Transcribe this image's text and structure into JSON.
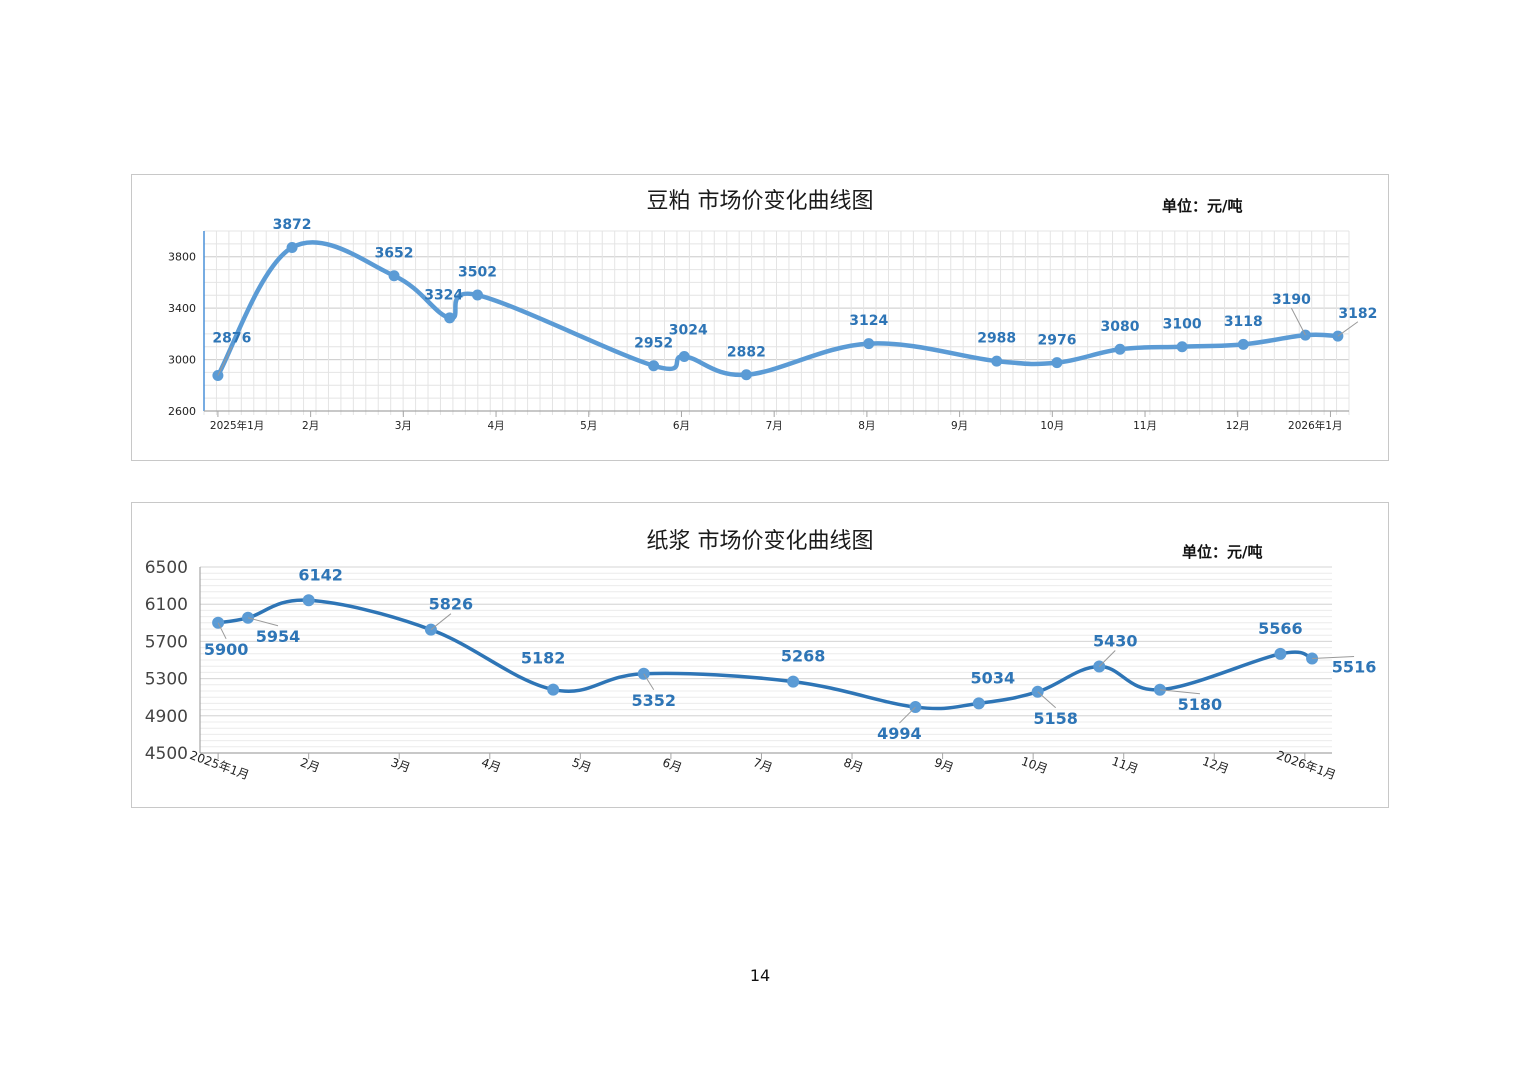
{
  "page_number": "14",
  "chart_data": [
    {
      "type": "line",
      "title": "豆粕 市场价变化曲线图",
      "unit_label": "单位：元/吨",
      "ylim": [
        2600,
        4000
      ],
      "yticks": [
        "2600",
        "3000",
        "3400",
        "3800"
      ],
      "grid": true,
      "x_months": [
        "2025年1月",
        "2月",
        "3月",
        "4月",
        "5月",
        "6月",
        "7月",
        "8月",
        "9月",
        "10月",
        "11月",
        "12月",
        "2026年1月"
      ],
      "series": [
        {
          "color": "#5b9bd5",
          "points": [
            {
              "x": 0.0,
              "y": 2876,
              "label": "2876"
            },
            {
              "x": 0.8,
              "y": 3872,
              "label": "3872"
            },
            {
              "x": 1.9,
              "y": 3652,
              "label": "3652"
            },
            {
              "x": 2.5,
              "y": 3324,
              "label": "3324"
            },
            {
              "x": 2.8,
              "y": 3502,
              "label": "3502"
            },
            {
              "x": 4.7,
              "y": 2952,
              "label": "2952"
            },
            {
              "x": 5.03,
              "y": 3024,
              "label": "3024"
            },
            {
              "x": 5.7,
              "y": 2882,
              "label": "2882"
            },
            {
              "x": 7.02,
              "y": 3124,
              "label": "3124"
            },
            {
              "x": 8.4,
              "y": 2988,
              "label": "2988"
            },
            {
              "x": 9.05,
              "y": 2976,
              "label": "2976"
            },
            {
              "x": 9.73,
              "y": 3080,
              "label": "3080"
            },
            {
              "x": 10.4,
              "y": 3100,
              "label": "3100"
            },
            {
              "x": 11.06,
              "y": 3118,
              "label": "3118"
            },
            {
              "x": 11.73,
              "y": 3190,
              "label": "3190"
            },
            {
              "x": 12.08,
              "y": 3182,
              "label": "3182"
            }
          ]
        }
      ]
    },
    {
      "type": "line",
      "title": "纸浆 市场价变化曲线图",
      "unit_label": "单位：元/吨",
      "ylim": [
        4500,
        6500
      ],
      "yticks": [
        "4500",
        "4900",
        "5300",
        "5700",
        "6100",
        "6500"
      ],
      "grid": true,
      "x_months": [
        "2025年1月",
        "2月",
        "3月",
        "4月",
        "5月",
        "6月",
        "7月",
        "8月",
        "9月",
        "10月",
        "11月",
        "12月",
        "2026年1月"
      ],
      "series": [
        {
          "color": "#2e75b6",
          "points": [
            {
              "x": 0.0,
              "y": 5900,
              "label": "5900"
            },
            {
              "x": 0.33,
              "y": 5954,
              "label": "5954"
            },
            {
              "x": 1.0,
              "y": 6142,
              "label": "6142"
            },
            {
              "x": 2.35,
              "y": 5826,
              "label": "5826"
            },
            {
              "x": 3.7,
              "y": 5182,
              "label": "5182"
            },
            {
              "x": 4.7,
              "y": 5352,
              "label": "5352"
            },
            {
              "x": 6.35,
              "y": 5268,
              "label": "5268"
            },
            {
              "x": 7.7,
              "y": 4994,
              "label": "4994"
            },
            {
              "x": 8.4,
              "y": 5034,
              "label": "5034"
            },
            {
              "x": 9.05,
              "y": 5158,
              "label": "5158"
            },
            {
              "x": 9.73,
              "y": 5430,
              "label": "5430"
            },
            {
              "x": 10.4,
              "y": 5180,
              "label": "5180"
            },
            {
              "x": 11.73,
              "y": 5566,
              "label": "5566"
            },
            {
              "x": 12.08,
              "y": 5516,
              "label": "5516"
            }
          ]
        }
      ]
    }
  ]
}
